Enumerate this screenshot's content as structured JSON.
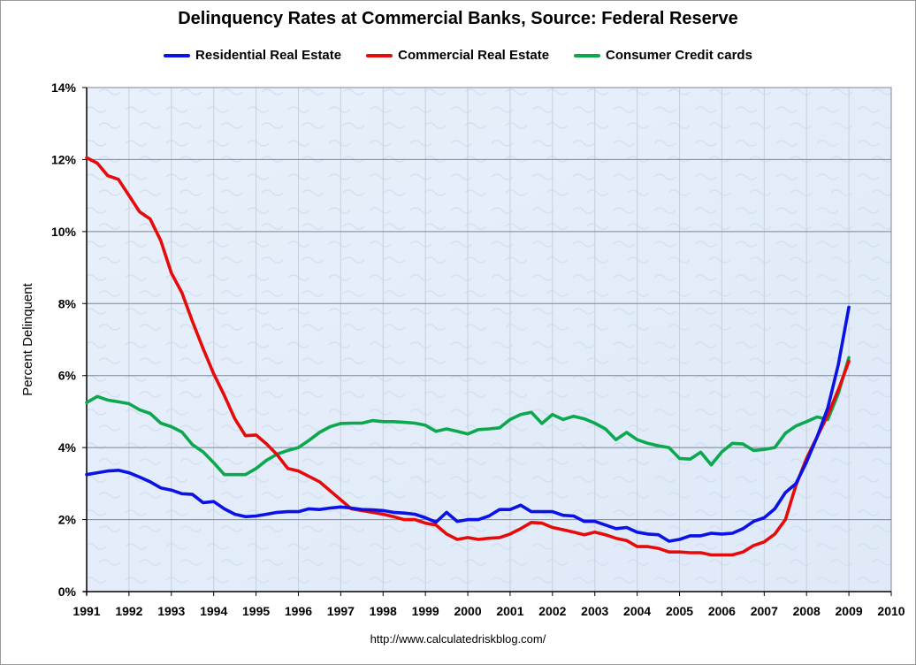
{
  "chart_data": {
    "type": "line",
    "title": "Delinquency Rates at Commercial Banks, Source: Federal Reserve",
    "xlabel": "",
    "ylabel": "Percent Delinquent",
    "xlim": [
      1991,
      2010
    ],
    "ylim": [
      0,
      14
    ],
    "x_ticks": [
      "1991",
      "1992",
      "1993",
      "1994",
      "1995",
      "1996",
      "1997",
      "1998",
      "1999",
      "2000",
      "2001",
      "2002",
      "2003",
      "2004",
      "2005",
      "2006",
      "2007",
      "2008",
      "2009",
      "2010"
    ],
    "y_ticks": [
      "0%",
      "2%",
      "4%",
      "6%",
      "8%",
      "10%",
      "12%",
      "14%"
    ],
    "grid": true,
    "legend_position": "top",
    "source": "http://www.calculatedriskblog.com/",
    "x": [
      1991.0,
      1991.25,
      1991.5,
      1991.75,
      1992.0,
      1992.25,
      1992.5,
      1992.75,
      1993.0,
      1993.25,
      1993.5,
      1993.75,
      1994.0,
      1994.25,
      1994.5,
      1994.75,
      1995.0,
      1995.25,
      1995.5,
      1995.75,
      1996.0,
      1996.25,
      1996.5,
      1996.75,
      1997.0,
      1997.25,
      1997.5,
      1997.75,
      1998.0,
      1998.25,
      1998.5,
      1998.75,
      1999.0,
      1999.25,
      1999.5,
      1999.75,
      2000.0,
      2000.25,
      2000.5,
      2000.75,
      2001.0,
      2001.25,
      2001.5,
      2001.75,
      2002.0,
      2002.25,
      2002.5,
      2002.75,
      2003.0,
      2003.25,
      2003.5,
      2003.75,
      2004.0,
      2004.25,
      2004.5,
      2004.75,
      2005.0,
      2005.25,
      2005.5,
      2005.75,
      2006.0,
      2006.25,
      2006.5,
      2006.75,
      2007.0,
      2007.25,
      2007.5,
      2007.75,
      2008.0,
      2008.25,
      2008.5,
      2008.75,
      2009.0
    ],
    "series": [
      {
        "name": "Residential Real Estate",
        "color": "#0a12e6",
        "values": [
          3.25,
          3.3,
          3.35,
          3.37,
          3.3,
          3.18,
          3.05,
          2.88,
          2.82,
          2.72,
          2.7,
          2.47,
          2.5,
          2.3,
          2.15,
          2.08,
          2.1,
          2.15,
          2.2,
          2.22,
          2.22,
          2.3,
          2.28,
          2.32,
          2.35,
          2.32,
          2.28,
          2.27,
          2.25,
          2.2,
          2.18,
          2.15,
          2.05,
          1.93,
          2.2,
          1.95,
          2.0,
          2.0,
          2.1,
          2.28,
          2.28,
          2.4,
          2.22,
          2.22,
          2.22,
          2.12,
          2.1,
          1.95,
          1.95,
          1.85,
          1.75,
          1.78,
          1.65,
          1.6,
          1.58,
          1.4,
          1.45,
          1.55,
          1.55,
          1.62,
          1.6,
          1.62,
          1.75,
          1.95,
          2.05,
          2.3,
          2.75,
          3.0,
          3.6,
          4.3,
          5.1,
          6.3,
          7.9
        ]
      },
      {
        "name": "Commercial Real Estate",
        "color": "#e60a0a",
        "values": [
          12.05,
          11.9,
          11.55,
          11.45,
          11.0,
          10.55,
          10.35,
          9.75,
          8.85,
          8.3,
          7.5,
          6.75,
          6.05,
          5.45,
          4.8,
          4.33,
          4.35,
          4.1,
          3.8,
          3.42,
          3.35,
          3.2,
          3.05,
          2.8,
          2.55,
          2.3,
          2.25,
          2.2,
          2.15,
          2.08,
          2.0,
          2.0,
          1.9,
          1.85,
          1.6,
          1.45,
          1.5,
          1.45,
          1.48,
          1.5,
          1.6,
          1.75,
          1.92,
          1.9,
          1.78,
          1.72,
          1.65,
          1.58,
          1.65,
          1.58,
          1.48,
          1.42,
          1.25,
          1.25,
          1.2,
          1.1,
          1.1,
          1.08,
          1.08,
          1.02,
          1.02,
          1.02,
          1.1,
          1.28,
          1.38,
          1.6,
          2.0,
          2.95,
          3.7,
          4.3,
          4.9,
          5.6,
          6.4
        ]
      },
      {
        "name": "Consumer Credit cards",
        "color": "#0ca84f",
        "values": [
          5.25,
          5.42,
          5.32,
          5.27,
          5.22,
          5.05,
          4.95,
          4.68,
          4.58,
          4.43,
          4.08,
          3.88,
          3.58,
          3.25,
          3.25,
          3.25,
          3.42,
          3.65,
          3.82,
          3.92,
          4.0,
          4.2,
          4.42,
          4.58,
          4.67,
          4.68,
          4.68,
          4.75,
          4.72,
          4.72,
          4.7,
          4.68,
          4.62,
          4.45,
          4.52,
          4.45,
          4.38,
          4.5,
          4.52,
          4.55,
          4.78,
          4.92,
          4.98,
          4.67,
          4.92,
          4.78,
          4.87,
          4.8,
          4.68,
          4.52,
          4.22,
          4.42,
          4.22,
          4.12,
          4.05,
          4.0,
          3.7,
          3.68,
          3.87,
          3.52,
          3.88,
          4.12,
          4.1,
          3.92,
          3.95,
          4.0,
          4.4,
          4.6,
          4.72,
          4.85,
          4.78,
          5.5,
          6.5
        ]
      }
    ]
  }
}
